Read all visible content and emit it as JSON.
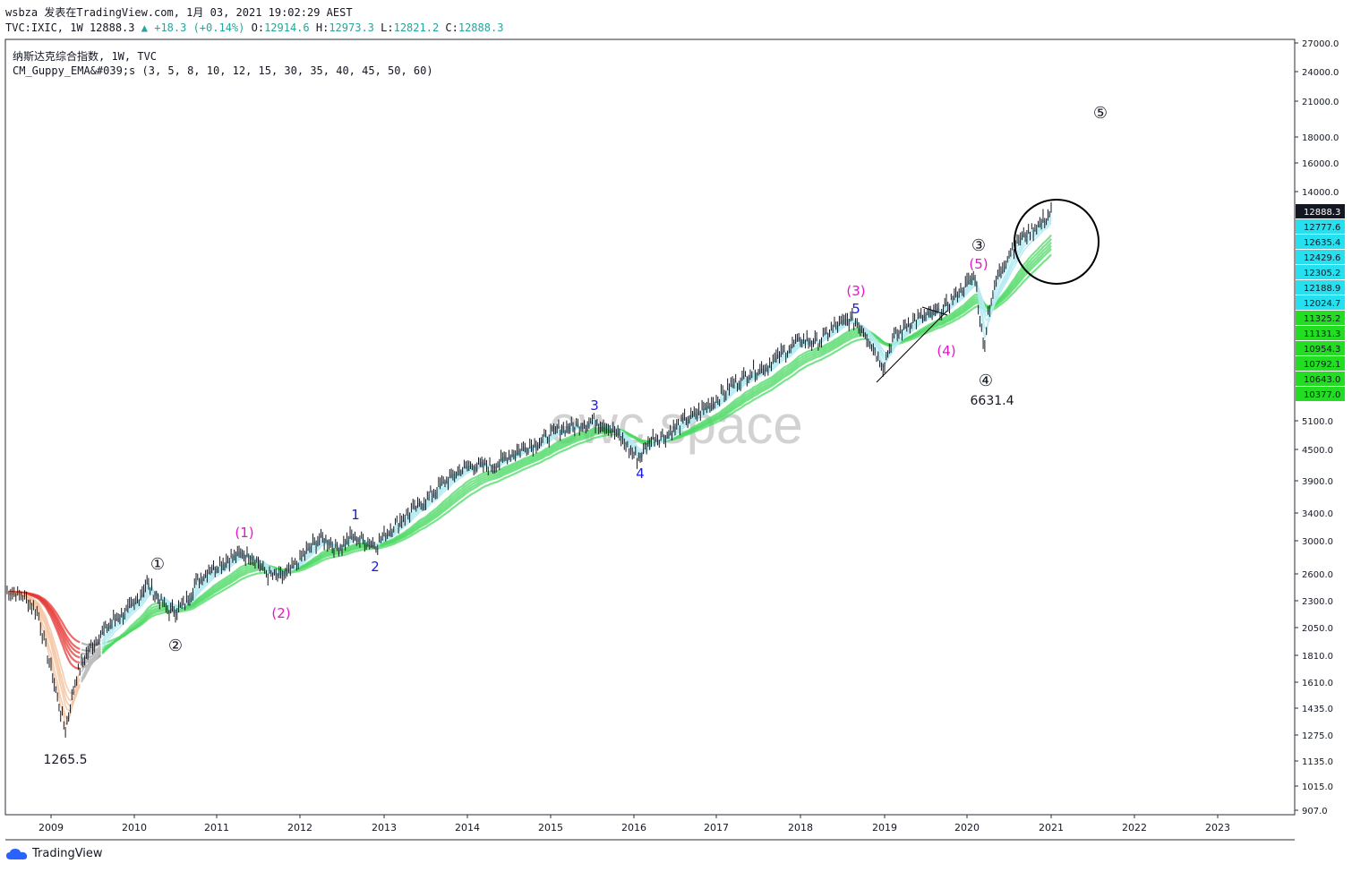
{
  "header": {
    "line1": "wsbza 发表在TradingView.com, 1月 03, 2021 19:02:29 AEST",
    "symbol": "TVC:IXIC, 1W",
    "last": "12888.3",
    "change": "+18.3 (+0.14%)",
    "o_label": "O:",
    "o": "12914.6",
    "h_label": "H:",
    "h": "12973.3",
    "l_label": "L:",
    "l": "12821.2",
    "c_label": "C:",
    "c": "12888.3",
    "title": "纳斯达克综合指数, 1W, TVC",
    "indicator": "CM_Guppy_EMA&#039;s (3, 5, 8, 10, 12, 15, 30, 35, 40, 45, 50, 60)"
  },
  "watermark": "ewc.space",
  "footer": {
    "brand": "TradingView"
  },
  "colors": {
    "candle": "#131722",
    "fast_ema": "#26c6da",
    "fast_ema_light": "#b2ebf2",
    "slow_ema": "#4cd964",
    "bear_ema": "#e53935",
    "bear_ema_light": "#f5c6a5",
    "neutral_ema": "#9e9e9e",
    "magenta": "#e815c8",
    "blue": "#1a1ae6",
    "price_tag": "#131722"
  },
  "chart_data": {
    "type": "line",
    "title": "纳斯达克综合指数, 1W, TVC",
    "y_scale": "log",
    "ylim": [
      907,
      27000
    ],
    "xlim": [
      2008.5,
      2024.0
    ],
    "x_ticks": [
      "2009",
      "2010",
      "2011",
      "2012",
      "2013",
      "2014",
      "2015",
      "2016",
      "2017",
      "2018",
      "2019",
      "2020",
      "2021",
      "2022",
      "2023"
    ],
    "y_ticks": [
      "27000.0",
      "24000.0",
      "21000.0",
      "18000.0",
      "16000.0",
      "14000.0",
      "5100.0",
      "4500.0",
      "3900.0",
      "3400.0",
      "3000.0",
      "2600.0",
      "2300.0",
      "2050.0",
      "1810.0",
      "1610.0",
      "1435.0",
      "1275.0",
      "1135.0",
      "1015.0",
      "907.0"
    ],
    "price_labels": [
      {
        "text": "12888.3",
        "color": "#131722",
        "text_color": "#ffffff"
      },
      {
        "text": "12777.6",
        "color": "#26e0f0",
        "text_color": "#131722"
      },
      {
        "text": "12635.4",
        "color": "#26e0f0",
        "text_color": "#131722"
      },
      {
        "text": "12429.6",
        "color": "#26e0f0",
        "text_color": "#131722"
      },
      {
        "text": "12305.2",
        "color": "#26e0f0",
        "text_color": "#131722"
      },
      {
        "text": "12188.9",
        "color": "#26e0f0",
        "text_color": "#131722"
      },
      {
        "text": "12024.7",
        "color": "#26e0f0",
        "text_color": "#131722"
      },
      {
        "text": "11325.2",
        "color": "#22dd22",
        "text_color": "#131722"
      },
      {
        "text": "11131.3",
        "color": "#22dd22",
        "text_color": "#131722"
      },
      {
        "text": "10954.3",
        "color": "#22dd22",
        "text_color": "#131722"
      },
      {
        "text": "10792.1",
        "color": "#22dd22",
        "text_color": "#131722"
      },
      {
        "text": "10643.0",
        "color": "#22dd22",
        "text_color": "#131722"
      },
      {
        "text": "10377.0",
        "color": "#22dd22",
        "text_color": "#131722"
      }
    ],
    "series": [
      {
        "x": [
          2008.5,
          2008.7,
          2008.85,
          2009.0,
          2009.08,
          2009.17,
          2009.3,
          2009.45,
          2009.6,
          2009.8,
          2010.0,
          2010.15,
          2010.3,
          2010.45,
          2010.6,
          2010.75,
          2010.9,
          2011.1,
          2011.3,
          2011.45,
          2011.6,
          2011.75,
          2011.9,
          2012.1,
          2012.25,
          2012.45,
          2012.6,
          2012.75,
          2012.9,
          2013.1,
          2013.3,
          2013.5,
          2013.7,
          2013.9,
          2014.1,
          2014.3,
          2014.5,
          2014.7,
          2014.9,
          2015.1,
          2015.3,
          2015.5,
          2015.65,
          2015.8,
          2016.05,
          2016.2,
          2016.4,
          2016.6,
          2016.8,
          2017.0,
          2017.2,
          2017.4,
          2017.6,
          2017.8,
          2018.0,
          2018.2,
          2018.4,
          2018.6,
          2018.75,
          2018.85,
          2018.98,
          2019.1,
          2019.3,
          2019.5,
          2019.7,
          2019.9,
          2020.1,
          2020.13,
          2020.2,
          2020.25,
          2020.35,
          2020.5,
          2020.65,
          2020.8,
          2020.95,
          2021.0
        ],
        "values": [
          2400,
          2350,
          2200,
          1700,
          1500,
          1300,
          1650,
          1850,
          2000,
          2150,
          2250,
          2500,
          2300,
          2200,
          2250,
          2500,
          2650,
          2750,
          2850,
          2800,
          2600,
          2550,
          2650,
          2900,
          3050,
          2900,
          3050,
          3000,
          2950,
          3200,
          3400,
          3600,
          3850,
          4100,
          4200,
          4150,
          4400,
          4550,
          4700,
          4900,
          5000,
          5100,
          5050,
          4800,
          4300,
          4700,
          4800,
          5100,
          5300,
          5600,
          6000,
          6300,
          6500,
          6900,
          7300,
          7200,
          7700,
          8000,
          7600,
          7100,
          6500,
          7300,
          7900,
          8100,
          8300,
          9000,
          9700,
          8600,
          7000,
          8200,
          9500,
          10700,
          11500,
          11900,
          12500,
          12888
        ]
      }
    ],
    "annotations": [
      {
        "text": "1265.5",
        "x": 2009.17,
        "y": 1265.5,
        "color": "#131722"
      },
      {
        "text": "6631.4",
        "x": 2020.22,
        "y": 6631.4,
        "color": "#131722"
      },
      {
        "text": "①",
        "color": "#131722"
      },
      {
        "text": "②",
        "color": "#131722"
      },
      {
        "text": "③",
        "color": "#131722"
      },
      {
        "text": "④",
        "color": "#131722"
      },
      {
        "text": "⑤",
        "color": "#131722"
      },
      {
        "text": "(1)",
        "color": "#e815c8"
      },
      {
        "text": "(2)",
        "color": "#e815c8"
      },
      {
        "text": "(3)",
        "color": "#e815c8"
      },
      {
        "text": "(4)",
        "color": "#e815c8"
      },
      {
        "text": "(5)",
        "color": "#e815c8"
      },
      {
        "text": "1",
        "color": "#1a1ae6"
      },
      {
        "text": "2",
        "color": "#1a1ae6"
      },
      {
        "text": "3",
        "color": "#1a1ae6"
      },
      {
        "text": "4",
        "color": "#1a1ae6"
      },
      {
        "text": "5",
        "color": "#1a1ae6"
      }
    ]
  }
}
